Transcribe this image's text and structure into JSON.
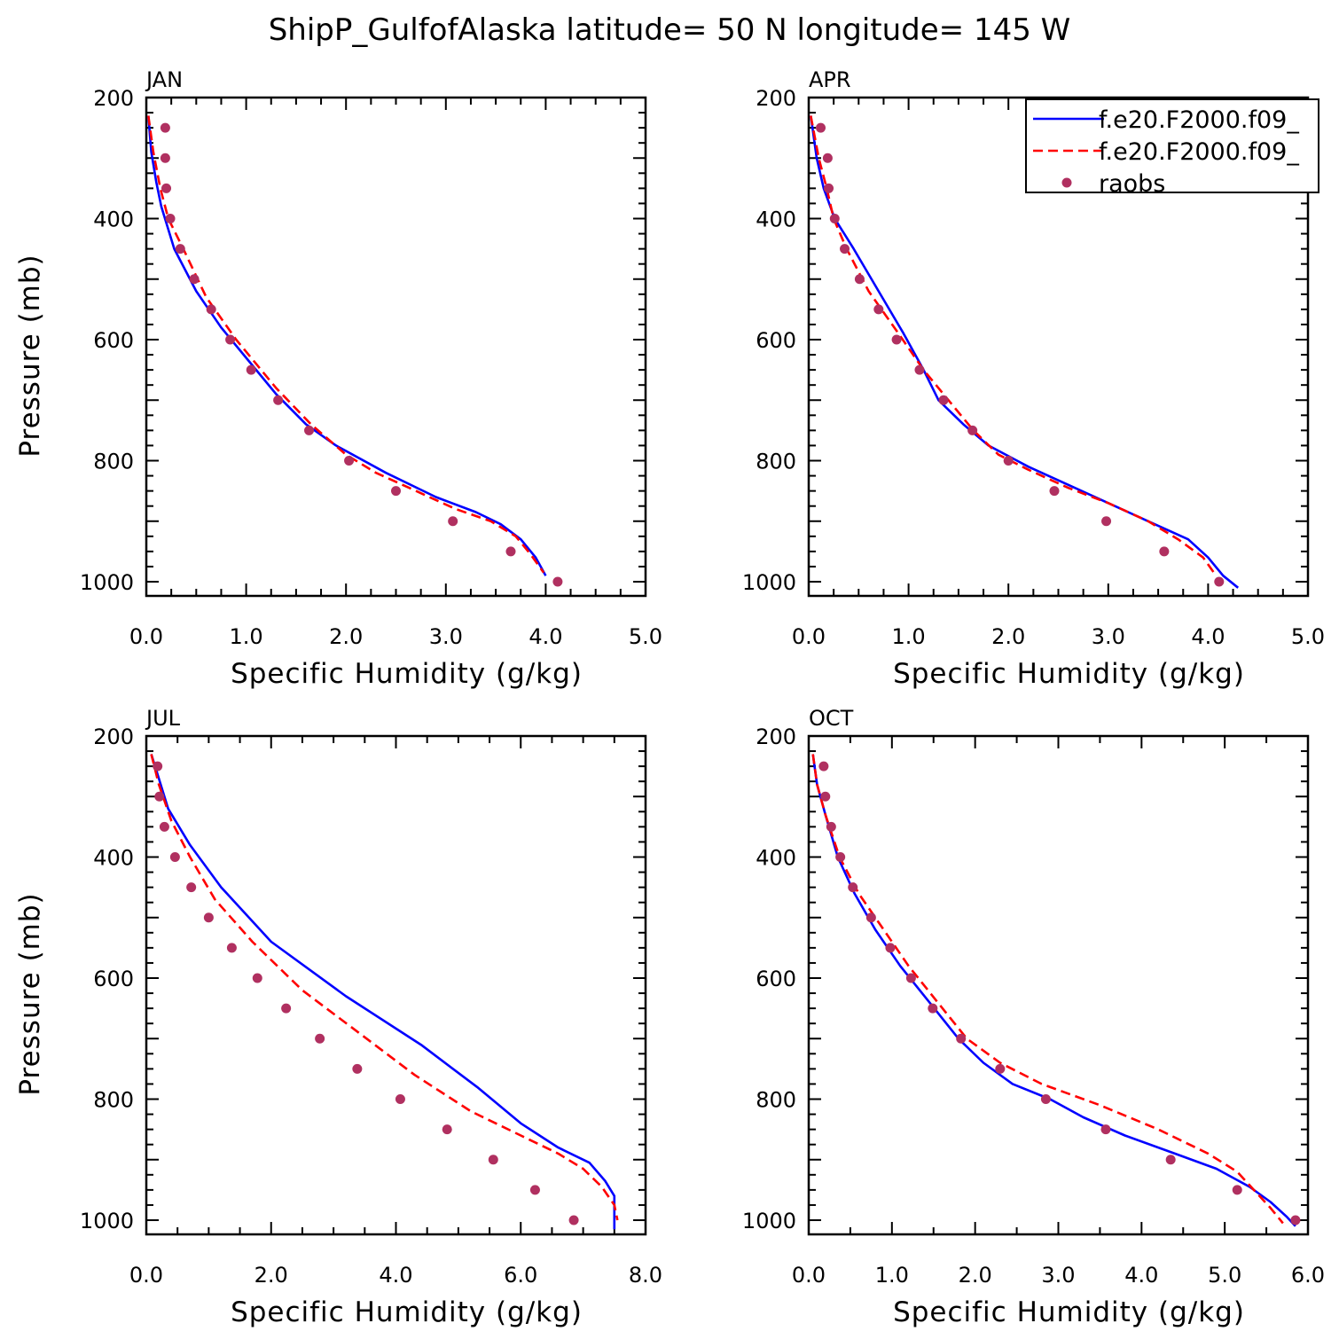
{
  "title": "ShipP_GulfofAlaska  latitude= 50 N longitude= 145 W",
  "colors": {
    "model1": "#0000ff",
    "model2": "#ff0000",
    "raobs": "#b03060"
  },
  "legend": {
    "placement": "top-right of APR panel",
    "entries": [
      {
        "label": "f.e20.F2000.f09_",
        "style": "solid",
        "color": "#0000ff"
      },
      {
        "label": "f.e20.F2000.f09_",
        "style": "dashed",
        "color": "#ff0000"
      },
      {
        "label": "raobs",
        "style": "dots",
        "color": "#b03060"
      }
    ]
  },
  "chart_data": [
    {
      "type": "line",
      "panel": "JAN",
      "xlabel": "Specific Humidity (g/kg)",
      "ylabel": "Pressure (mb)",
      "xlim": [
        0,
        5
      ],
      "xticks": [
        "0.0",
        "1.0",
        "2.0",
        "3.0",
        "4.0",
        "5.0"
      ],
      "xminor": 0.25,
      "ylim": [
        200,
        1025
      ],
      "yticks": [
        "200",
        "400",
        "600",
        "800",
        "1000"
      ],
      "yreversed": true,
      "series": [
        {
          "style": "solid",
          "color": "#0000ff",
          "points": [
            [
              0.02,
              230
            ],
            [
              0.05,
              290
            ],
            [
              0.1,
              340
            ],
            [
              0.15,
              380
            ],
            [
              0.28,
              450
            ],
            [
              0.5,
              520
            ],
            [
              0.75,
              580
            ],
            [
              1.0,
              630
            ],
            [
              1.3,
              690
            ],
            [
              1.6,
              740
            ],
            [
              1.9,
              775
            ],
            [
              2.4,
              820
            ],
            [
              2.9,
              860
            ],
            [
              3.3,
              885
            ],
            [
              3.55,
              905
            ],
            [
              3.75,
              930
            ],
            [
              3.9,
              960
            ],
            [
              4.0,
              990
            ]
          ]
        },
        {
          "style": "dashed",
          "color": "#ff0000",
          "points": [
            [
              0.02,
              230
            ],
            [
              0.07,
              290
            ],
            [
              0.14,
              350
            ],
            [
              0.22,
              400
            ],
            [
              0.37,
              450
            ],
            [
              0.6,
              530
            ],
            [
              0.9,
              600
            ],
            [
              1.3,
              680
            ],
            [
              1.65,
              740
            ],
            [
              2.0,
              790
            ],
            [
              2.3,
              820
            ],
            [
              2.7,
              850
            ],
            [
              3.1,
              880
            ],
            [
              3.45,
              900
            ],
            [
              3.7,
              925
            ],
            [
              3.85,
              955
            ],
            [
              3.98,
              985
            ]
          ]
        },
        {
          "style": "dots",
          "color": "#b03060",
          "points": [
            [
              0.19,
              250
            ],
            [
              0.19,
              300
            ],
            [
              0.2,
              350
            ],
            [
              0.24,
              400
            ],
            [
              0.34,
              450
            ],
            [
              0.48,
              500
            ],
            [
              0.65,
              550
            ],
            [
              0.84,
              600
            ],
            [
              1.05,
              650
            ],
            [
              1.32,
              700
            ],
            [
              1.63,
              750
            ],
            [
              2.03,
              800
            ],
            [
              2.5,
              850
            ],
            [
              3.07,
              900
            ],
            [
              3.65,
              950
            ],
            [
              4.12,
              1000
            ]
          ]
        }
      ]
    },
    {
      "type": "line",
      "panel": "APR",
      "xlabel": "Specific Humidity (g/kg)",
      "ylabel": "",
      "xlim": [
        0,
        5
      ],
      "xticks": [
        "0.0",
        "1.0",
        "2.0",
        "3.0",
        "4.0",
        "5.0"
      ],
      "xminor": 0.25,
      "ylim": [
        200,
        1025
      ],
      "yticks": [
        "200",
        "400",
        "600",
        "800",
        "1000"
      ],
      "yreversed": true,
      "series": [
        {
          "style": "solid",
          "color": "#0000ff",
          "points": [
            [
              0.02,
              230
            ],
            [
              0.08,
              300
            ],
            [
              0.15,
              350
            ],
            [
              0.26,
              400
            ],
            [
              0.45,
              450
            ],
            [
              0.7,
              520
            ],
            [
              0.95,
              590
            ],
            [
              1.15,
              650
            ],
            [
              1.3,
              700
            ],
            [
              1.55,
              740
            ],
            [
              1.8,
              775
            ],
            [
              2.2,
              810
            ],
            [
              2.6,
              840
            ],
            [
              3.0,
              870
            ],
            [
              3.4,
              900
            ],
            [
              3.8,
              930
            ],
            [
              4.0,
              960
            ],
            [
              4.15,
              990
            ],
            [
              4.3,
              1010
            ]
          ]
        },
        {
          "style": "dashed",
          "color": "#ff0000",
          "points": [
            [
              0.02,
              230
            ],
            [
              0.1,
              300
            ],
            [
              0.18,
              350
            ],
            [
              0.25,
              400
            ],
            [
              0.38,
              450
            ],
            [
              0.6,
              520
            ],
            [
              0.9,
              590
            ],
            [
              1.15,
              650
            ],
            [
              1.4,
              700
            ],
            [
              1.65,
              750
            ],
            [
              1.9,
              790
            ],
            [
              2.2,
              815
            ],
            [
              2.6,
              845
            ],
            [
              3.0,
              870
            ],
            [
              3.4,
              900
            ],
            [
              3.7,
              930
            ],
            [
              3.95,
              960
            ],
            [
              4.08,
              990
            ]
          ]
        },
        {
          "style": "dots",
          "color": "#b03060",
          "points": [
            [
              0.12,
              250
            ],
            [
              0.19,
              300
            ],
            [
              0.2,
              350
            ],
            [
              0.26,
              400
            ],
            [
              0.36,
              450
            ],
            [
              0.51,
              500
            ],
            [
              0.7,
              550
            ],
            [
              0.88,
              600
            ],
            [
              1.11,
              650
            ],
            [
              1.35,
              700
            ],
            [
              1.64,
              750
            ],
            [
              2.0,
              800
            ],
            [
              2.46,
              850
            ],
            [
              2.98,
              900
            ],
            [
              3.56,
              950
            ],
            [
              4.11,
              1000
            ]
          ]
        }
      ]
    },
    {
      "type": "line",
      "panel": "JUL",
      "xlabel": "Specific Humidity (g/kg)",
      "ylabel": "Pressure (mb)",
      "xlim": [
        0,
        8
      ],
      "xticks": [
        "0.0",
        "2.0",
        "4.0",
        "6.0",
        "8.0"
      ],
      "xminor": 0.5,
      "ylim": [
        200,
        1025
      ],
      "yticks": [
        "200",
        "400",
        "600",
        "800",
        "1000"
      ],
      "yreversed": true,
      "series": [
        {
          "style": "solid",
          "color": "#0000ff",
          "points": [
            [
              0.08,
              230
            ],
            [
              0.2,
              270
            ],
            [
              0.35,
              320
            ],
            [
              0.7,
              380
            ],
            [
              1.2,
              450
            ],
            [
              2.0,
              540
            ],
            [
              3.2,
              630
            ],
            [
              4.4,
              710
            ],
            [
              5.3,
              780
            ],
            [
              6.0,
              840
            ],
            [
              6.6,
              880
            ],
            [
              7.1,
              905
            ],
            [
              7.35,
              935
            ],
            [
              7.5,
              960
            ],
            [
              7.5,
              990
            ],
            [
              7.5,
              1015
            ]
          ]
        },
        {
          "style": "dashed",
          "color": "#ff0000",
          "points": [
            [
              0.08,
              230
            ],
            [
              0.2,
              280
            ],
            [
              0.4,
              340
            ],
            [
              0.7,
              400
            ],
            [
              1.1,
              470
            ],
            [
              1.7,
              540
            ],
            [
              2.5,
              620
            ],
            [
              3.4,
              690
            ],
            [
              4.3,
              760
            ],
            [
              5.2,
              820
            ],
            [
              6.0,
              860
            ],
            [
              6.6,
              890
            ],
            [
              7.0,
              915
            ],
            [
              7.3,
              945
            ],
            [
              7.5,
              975
            ],
            [
              7.55,
              1000
            ]
          ]
        },
        {
          "style": "dots",
          "color": "#b03060",
          "points": [
            [
              0.18,
              250
            ],
            [
              0.21,
              300
            ],
            [
              0.29,
              350
            ],
            [
              0.46,
              400
            ],
            [
              0.72,
              450
            ],
            [
              1.0,
              500
            ],
            [
              1.37,
              550
            ],
            [
              1.78,
              600
            ],
            [
              2.24,
              650
            ],
            [
              2.78,
              700
            ],
            [
              3.38,
              750
            ],
            [
              4.07,
              800
            ],
            [
              4.82,
              850
            ],
            [
              5.56,
              900
            ],
            [
              6.23,
              950
            ],
            [
              6.85,
              1000
            ]
          ]
        }
      ]
    },
    {
      "type": "line",
      "panel": "OCT",
      "xlabel": "Specific Humidity (g/kg)",
      "ylabel": "",
      "xlim": [
        0,
        6
      ],
      "xticks": [
        "0.0",
        "1.0",
        "2.0",
        "3.0",
        "4.0",
        "5.0",
        "6.0"
      ],
      "xminor": 0.5,
      "ylim": [
        200,
        1025
      ],
      "yticks": [
        "200",
        "400",
        "600",
        "800",
        "1000"
      ],
      "yreversed": true,
      "series": [
        {
          "style": "solid",
          "color": "#0000ff",
          "points": [
            [
              0.05,
              230
            ],
            [
              0.1,
              280
            ],
            [
              0.2,
              330
            ],
            [
              0.35,
              400
            ],
            [
              0.55,
              460
            ],
            [
              0.8,
              520
            ],
            [
              1.1,
              580
            ],
            [
              1.45,
              640
            ],
            [
              1.8,
              700
            ],
            [
              2.1,
              740
            ],
            [
              2.45,
              775
            ],
            [
              2.9,
              800
            ],
            [
              3.3,
              830
            ],
            [
              3.8,
              860
            ],
            [
              4.4,
              890
            ],
            [
              4.9,
              915
            ],
            [
              5.3,
              945
            ],
            [
              5.55,
              970
            ],
            [
              5.75,
              995
            ],
            [
              5.85,
              1010
            ]
          ]
        },
        {
          "style": "dashed",
          "color": "#ff0000",
          "points": [
            [
              0.05,
              230
            ],
            [
              0.1,
              280
            ],
            [
              0.2,
              330
            ],
            [
              0.37,
              400
            ],
            [
              0.6,
              460
            ],
            [
              0.9,
              520
            ],
            [
              1.2,
              580
            ],
            [
              1.55,
              640
            ],
            [
              1.9,
              700
            ],
            [
              2.3,
              740
            ],
            [
              2.8,
              775
            ],
            [
              3.5,
              810
            ],
            [
              4.2,
              850
            ],
            [
              4.8,
              890
            ],
            [
              5.15,
              920
            ],
            [
              5.35,
              950
            ],
            [
              5.55,
              980
            ],
            [
              5.7,
              1005
            ]
          ]
        },
        {
          "style": "dots",
          "color": "#b03060",
          "points": [
            [
              0.18,
              250
            ],
            [
              0.2,
              300
            ],
            [
              0.27,
              350
            ],
            [
              0.38,
              400
            ],
            [
              0.53,
              450
            ],
            [
              0.75,
              500
            ],
            [
              0.98,
              550
            ],
            [
              1.23,
              600
            ],
            [
              1.49,
              650
            ],
            [
              1.83,
              700
            ],
            [
              2.3,
              750
            ],
            [
              2.85,
              800
            ],
            [
              3.57,
              850
            ],
            [
              4.35,
              900
            ],
            [
              5.15,
              950
            ],
            [
              5.85,
              1000
            ]
          ]
        }
      ]
    }
  ]
}
